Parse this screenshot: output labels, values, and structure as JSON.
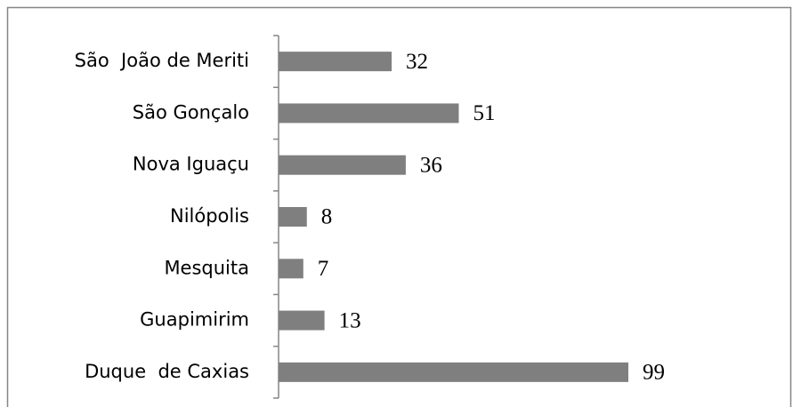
{
  "chart_data": {
    "type": "bar",
    "orientation": "horizontal",
    "categories": [
      "São  João de Meriti",
      "São Gonçalo",
      "Nova Iguaçu",
      "Nilópolis",
      "Mesquita",
      "Guapimirim",
      "Duque  de Caxias"
    ],
    "values": [
      32,
      51,
      36,
      8,
      7,
      13,
      99
    ],
    "color": "#7f7f7f"
  }
}
